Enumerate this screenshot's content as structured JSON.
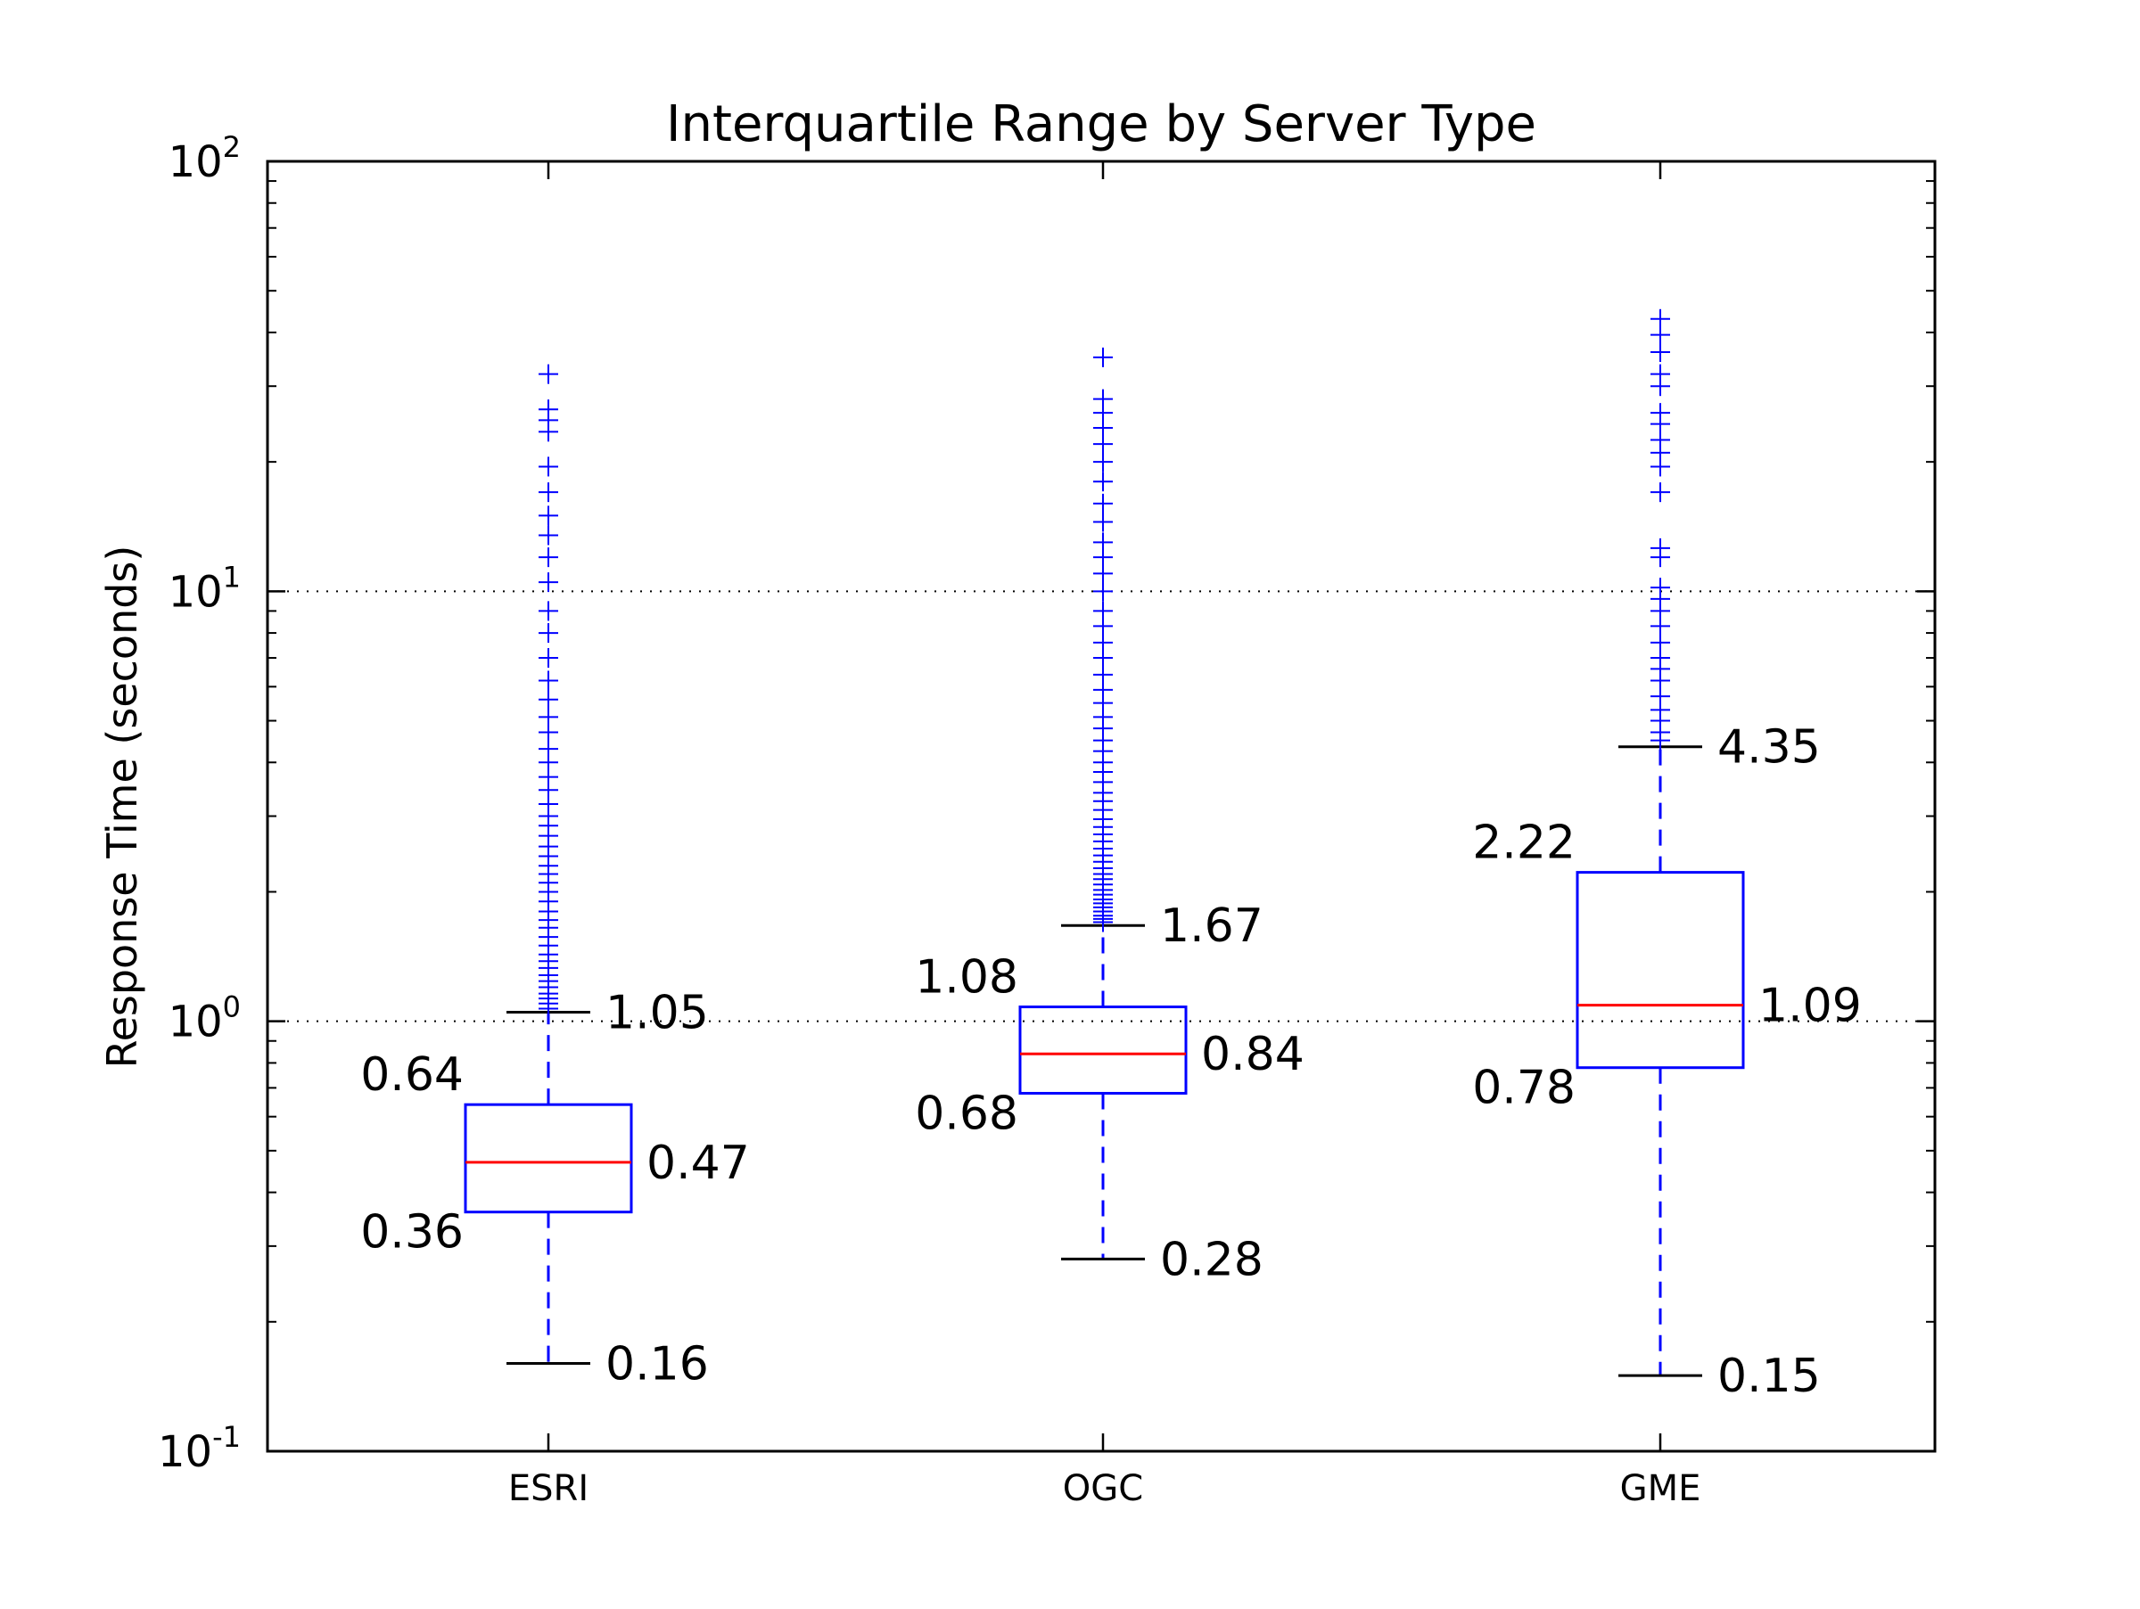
{
  "chart_data": {
    "type": "box",
    "title": "Interquartile Range by Server Type",
    "xlabel": "",
    "ylabel": "Response Time (seconds)",
    "yscale": "log",
    "ylim": [
      0.1,
      100
    ],
    "y_ticks": [
      {
        "value": 0.1,
        "base": "10",
        "exp": "-1"
      },
      {
        "value": 1,
        "base": "10",
        "exp": "0"
      },
      {
        "value": 10,
        "base": "10",
        "exp": "1"
      },
      {
        "value": 100,
        "base": "10",
        "exp": "2"
      }
    ],
    "grid": "horizontal dotted at major ticks",
    "colors": {
      "box": "#0000ff",
      "median": "#ff0000",
      "whisker_cap": "#000000",
      "flier": "#0000ff"
    },
    "categories": [
      "ESRI",
      "OGC",
      "GME"
    ],
    "boxes": [
      {
        "name": "ESRI",
        "whisker_low": 0.16,
        "q1": 0.36,
        "median": 0.47,
        "q3": 0.64,
        "whisker_high": 1.05,
        "labels": {
          "whisker_low": "0.16",
          "q1": "0.36",
          "median": "0.47",
          "q3": "0.64",
          "whisker_high": "1.05"
        },
        "outliers": [
          1.07,
          1.1,
          1.13,
          1.16,
          1.2,
          1.24,
          1.28,
          1.33,
          1.38,
          1.43,
          1.5,
          1.57,
          1.65,
          1.72,
          1.8,
          1.9,
          2.0,
          2.1,
          2.2,
          2.3,
          2.42,
          2.55,
          2.7,
          2.85,
          3.0,
          3.2,
          3.45,
          3.7,
          4.0,
          4.3,
          4.7,
          5.1,
          5.6,
          6.2,
          7.0,
          8.0,
          9.0,
          10.5,
          12.0,
          13.5,
          15.0,
          17.0,
          19.5,
          23.5,
          25.0,
          26.5,
          32.0
        ]
      },
      {
        "name": "OGC",
        "whisker_low": 0.28,
        "q1": 0.68,
        "median": 0.84,
        "q3": 1.08,
        "whisker_high": 1.67,
        "labels": {
          "whisker_low": "0.28",
          "q1": "0.68",
          "median": "0.84",
          "q3": "1.08",
          "whisker_high": "1.67"
        },
        "outliers": [
          1.7,
          1.73,
          1.76,
          1.8,
          1.84,
          1.88,
          1.92,
          1.97,
          2.02,
          2.08,
          2.14,
          2.2,
          2.27,
          2.35,
          2.43,
          2.52,
          2.62,
          2.72,
          2.83,
          2.95,
          3.1,
          3.25,
          3.4,
          3.6,
          3.8,
          4.0,
          4.25,
          4.5,
          4.8,
          5.1,
          5.5,
          5.9,
          6.4,
          7.0,
          7.6,
          8.3,
          9.0,
          10.0,
          11.0,
          12.0,
          13.0,
          14.5,
          16.0,
          18.0,
          20.0,
          22.0,
          24.0,
          26.0,
          28.0,
          35.0
        ]
      },
      {
        "name": "GME",
        "whisker_low": 0.15,
        "q1": 0.78,
        "median": 1.09,
        "q3": 2.22,
        "whisker_high": 4.35,
        "labels": {
          "whisker_low": "0.15",
          "q1": "0.78",
          "median": "1.09",
          "q3": "2.22",
          "whisker_high": "4.35"
        },
        "outliers": [
          4.5,
          4.7,
          5.0,
          5.3,
          5.7,
          6.2,
          6.6,
          7.0,
          7.6,
          8.3,
          9.0,
          9.6,
          10.2,
          12.0,
          12.6,
          17.0,
          19.5,
          21.0,
          22.5,
          24.5,
          26.0,
          30.0,
          32.0,
          36.0,
          39.5,
          43.0
        ]
      }
    ]
  }
}
